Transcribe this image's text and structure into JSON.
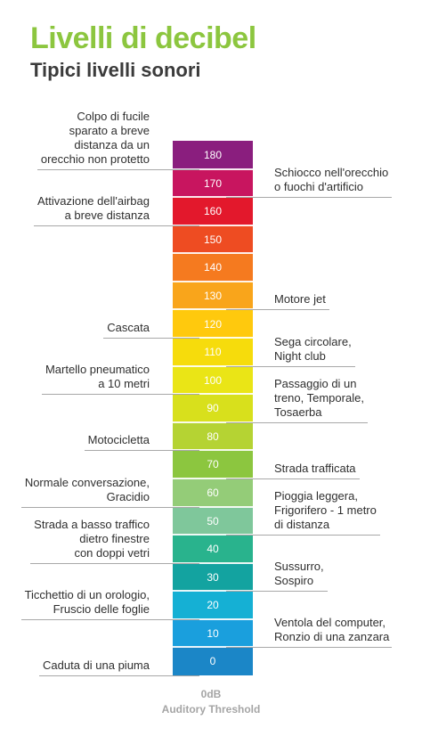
{
  "title": "Livelli di decibel",
  "subtitle": "Tipici livelli sonori",
  "scale": [
    {
      "label": "180",
      "color": "#8a1e7e"
    },
    {
      "label": "170",
      "color": "#c8155f"
    },
    {
      "label": "160",
      "color": "#e3182c"
    },
    {
      "label": "150",
      "color": "#ee4c22"
    },
    {
      "label": "140",
      "color": "#f57a1f"
    },
    {
      "label": "130",
      "color": "#f9a51b"
    },
    {
      "label": "120",
      "color": "#ffc90d"
    },
    {
      "label": "110",
      "color": "#f6dc0c"
    },
    {
      "label": "100",
      "color": "#eae516"
    },
    {
      "label": "90",
      "color": "#d8e01c"
    },
    {
      "label": "80",
      "color": "#b5d333"
    },
    {
      "label": "70",
      "color": "#8cc63f"
    },
    {
      "label": "60",
      "color": "#94cc78"
    },
    {
      "label": "50",
      "color": "#7fc79b"
    },
    {
      "label": "40",
      "color": "#29b38d"
    },
    {
      "label": "30",
      "color": "#13a3a0"
    },
    {
      "label": "20",
      "color": "#15b0d4"
    },
    {
      "label": "10",
      "color": "#1a9fdd"
    },
    {
      "label": "0",
      "color": "#1b86c7"
    }
  ],
  "left_annotations": [
    {
      "text": "Colpo di fucile\nsparato a breve\ndistanza da un\norecchio non protetto",
      "db": 175
    },
    {
      "text": "Attivazione dell'airbag\na breve distanza",
      "db": 155
    },
    {
      "text": "Cascata",
      "db": 115
    },
    {
      "text": "Martello pneumatico\na 10 metri",
      "db": 95
    },
    {
      "text": "Motocicletta",
      "db": 75
    },
    {
      "text": "Normale conversazione,\nGracidio",
      "db": 55
    },
    {
      "text": "Strada a basso traffico\ndietro finestre\ncon doppi vetri",
      "db": 35
    },
    {
      "text": "Ticchettio di un orologio,\nFruscio delle foglie",
      "db": 15
    },
    {
      "text": "Caduta di una piuma",
      "db": -5
    }
  ],
  "right_annotations": [
    {
      "text": "Schiocco nell'orecchio\no fuochi d'artificio",
      "db": 165
    },
    {
      "text": "Motore jet",
      "db": 125
    },
    {
      "text": "Sega circolare,\nNight club",
      "db": 105
    },
    {
      "text": "Passaggio di un\ntreno, Temporale,\nTosaerba",
      "db": 85
    },
    {
      "text": "Strada trafficata",
      "db": 65
    },
    {
      "text": "Pioggia leggera,\nFrigorifero - 1 metro\ndi distanza",
      "db": 45
    },
    {
      "text": "Sussurro,\nSospiro",
      "db": 25
    },
    {
      "text": "Ventola del computer,\nRonzio di una zanzara",
      "db": 5
    }
  ],
  "footer": {
    "line1": "0dB",
    "line2": "Auditory Threshold"
  }
}
